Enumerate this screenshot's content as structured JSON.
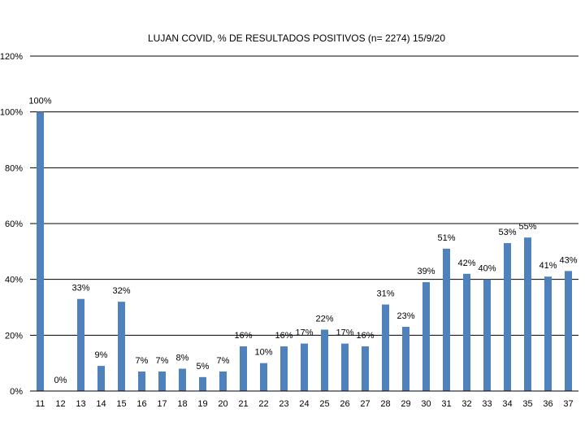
{
  "chart_data": {
    "type": "bar",
    "title": "LUJAN COVID, % DE RESULTADOS POSITIVOS (n= 2274) 15/9/20",
    "xlabel": "",
    "ylabel": "",
    "ylim": [
      0,
      120
    ],
    "yticks": [
      0,
      20,
      40,
      60,
      80,
      100,
      120
    ],
    "ytick_labels": [
      "0%",
      "20%",
      "40%",
      "60%",
      "80%",
      "100%",
      "120%"
    ],
    "grid": true,
    "legend": "none",
    "bar_color": "#4f81bd",
    "categories": [
      "11",
      "12",
      "13",
      "14",
      "15",
      "16",
      "17",
      "18",
      "19",
      "20",
      "21",
      "22",
      "23",
      "24",
      "25",
      "26",
      "27",
      "28",
      "29",
      "30",
      "31",
      "32",
      "33",
      "34",
      "35",
      "36",
      "37"
    ],
    "values": [
      100,
      0,
      33,
      9,
      32,
      7,
      7,
      8,
      5,
      7,
      16,
      10,
      16,
      17,
      22,
      17,
      16,
      31,
      23,
      39,
      51,
      42,
      40,
      53,
      55,
      41,
      43
    ],
    "data_labels": [
      "100%",
      "0%",
      "33%",
      "9%",
      "32%",
      "7%",
      "7%",
      "8%",
      "5%",
      "7%",
      "16%",
      "10%",
      "16%",
      "17%",
      "22%",
      "17%",
      "16%",
      "31%",
      "23%",
      "39%",
      "51%",
      "42%",
      "40%",
      "53%",
      "55%",
      "41%",
      "43%"
    ]
  }
}
